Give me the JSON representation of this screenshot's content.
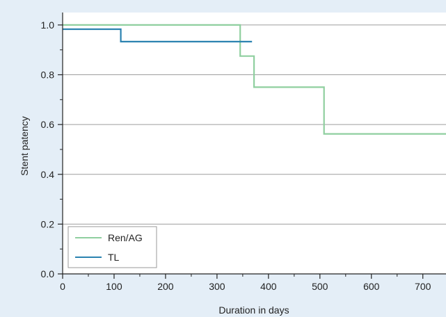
{
  "chart_data": {
    "type": "line",
    "step": true,
    "title": "",
    "xlabel": "Duration in days",
    "ylabel": "Stent patency",
    "xlim": [
      0,
      745
    ],
    "ylim": [
      0,
      1.05
    ],
    "xticks": [
      0,
      100,
      200,
      300,
      400,
      500,
      600,
      700
    ],
    "xminor_ticks": [
      50,
      150,
      250,
      350,
      450,
      550,
      650
    ],
    "yticks": [
      0.0,
      0.2,
      0.4,
      0.6,
      0.8,
      1.0
    ],
    "yminor_ticks": [
      0.1,
      0.3,
      0.5,
      0.7,
      0.9
    ],
    "xtick_labels": [
      "0",
      "100",
      "200",
      "300",
      "400",
      "500",
      "600",
      "700"
    ],
    "ytick_labels": [
      "0.0",
      "0.2",
      "0.4",
      "0.6",
      "0.8",
      "1.0"
    ],
    "grid": "horizontal",
    "legend_position": "bottom-left",
    "series": [
      {
        "name": "Ren/AG",
        "color": "#8fcf9f",
        "x": [
          0,
          345,
          345,
          372,
          372,
          508,
          508,
          745
        ],
        "y": [
          1.0,
          1.0,
          0.875,
          0.875,
          0.75,
          0.75,
          0.5625,
          0.5625
        ]
      },
      {
        "name": "TL",
        "color": "#2a82b0",
        "x": [
          0,
          113,
          113,
          368
        ],
        "y": [
          0.983,
          0.983,
          0.933,
          0.933
        ]
      }
    ]
  }
}
